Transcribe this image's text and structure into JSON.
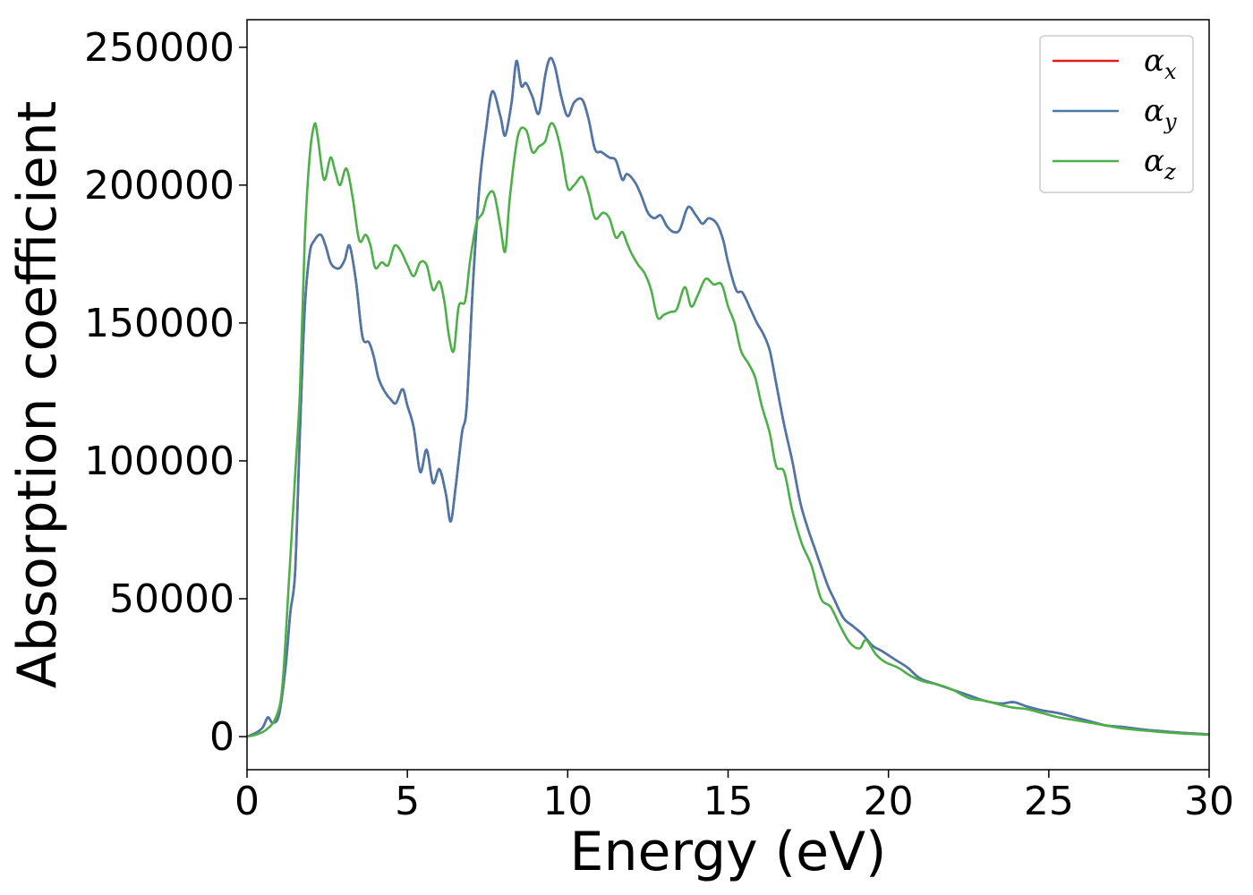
{
  "chart_data": {
    "type": "line",
    "title": "",
    "xlabel": "Energy (eV)",
    "ylabel": "Absorption coefficient",
    "xlim": [
      0,
      30
    ],
    "ylim": [
      -12000,
      260000
    ],
    "xticks": [
      0,
      5,
      10,
      15,
      20,
      25,
      30
    ],
    "yticks": [
      0,
      50000,
      100000,
      150000,
      200000,
      250000
    ],
    "grid": false,
    "legend": "top-right",
    "series": [
      {
        "name": "α",
        "subscript": "x",
        "color": "#e41a1c",
        "x": [
          0,
          0.3,
          0.5,
          0.65,
          0.8,
          1.0,
          1.2,
          1.35,
          1.5,
          1.65,
          1.8,
          1.95,
          2.1,
          2.3,
          2.45,
          2.6,
          2.75,
          2.9,
          3.05,
          3.2,
          3.4,
          3.6,
          3.8,
          3.95,
          4.1,
          4.3,
          4.5,
          4.65,
          4.85,
          5.0,
          5.2,
          5.4,
          5.6,
          5.8,
          6.0,
          6.2,
          6.35,
          6.5,
          6.7,
          6.85,
          7.05,
          7.25,
          7.45,
          7.65,
          7.9,
          8.05,
          8.25,
          8.4,
          8.55,
          8.7,
          8.9,
          9.1,
          9.3,
          9.45,
          9.6,
          9.8,
          10.0,
          10.2,
          10.45,
          10.65,
          10.85,
          11.05,
          11.3,
          11.5,
          11.7,
          11.85,
          12.1,
          12.3,
          12.5,
          12.7,
          12.9,
          13.1,
          13.3,
          13.5,
          13.75,
          14.0,
          14.2,
          14.4,
          14.65,
          14.85,
          15.0,
          15.25,
          15.45,
          15.7,
          15.9,
          16.1,
          16.3,
          16.5,
          16.75,
          17.0,
          17.25,
          17.5,
          17.8,
          18.1,
          18.3,
          18.6,
          18.9,
          19.2,
          19.5,
          19.8,
          20.2,
          20.6,
          21.0,
          21.5,
          22.0,
          22.5,
          23.0,
          23.5,
          23.9,
          24.3,
          24.8,
          25.3,
          25.8,
          26.3,
          26.8,
          27.3,
          28.0,
          28.7,
          29.4,
          30.0
        ],
        "y": [
          0,
          1500,
          3500,
          7000,
          5000,
          8000,
          25000,
          45000,
          60000,
          110000,
          155000,
          175000,
          180000,
          182000,
          178000,
          172000,
          170000,
          170000,
          173000,
          178000,
          165000,
          145000,
          143000,
          138000,
          130000,
          125000,
          122000,
          121000,
          126000,
          120000,
          112000,
          96000,
          104000,
          92000,
          97000,
          88000,
          78000,
          90000,
          110000,
          120000,
          165000,
          200000,
          220000,
          234000,
          225000,
          218000,
          230000,
          245000,
          236000,
          237000,
          232000,
          226000,
          240000,
          246000,
          243000,
          232000,
          225000,
          230000,
          231000,
          224000,
          213000,
          212000,
          210000,
          209000,
          202000,
          204000,
          201000,
          196000,
          190000,
          188000,
          189000,
          185000,
          183000,
          184000,
          192000,
          189000,
          186000,
          188000,
          186000,
          180000,
          172000,
          162000,
          161000,
          155000,
          150000,
          146000,
          140000,
          128000,
          113000,
          100000,
          85000,
          75000,
          65000,
          55000,
          50000,
          43000,
          40000,
          37000,
          33000,
          31000,
          28000,
          25000,
          21000,
          19000,
          17000,
          15000,
          13000,
          12000,
          12500,
          11000,
          9500,
          8500,
          7000,
          5500,
          4000,
          3500,
          2500,
          1800,
          1200,
          800
        ]
      },
      {
        "name": "α",
        "subscript": "y",
        "color": "#4a78a8",
        "x": [
          0,
          0.3,
          0.5,
          0.65,
          0.8,
          1.0,
          1.2,
          1.35,
          1.5,
          1.65,
          1.8,
          1.95,
          2.1,
          2.3,
          2.45,
          2.6,
          2.75,
          2.9,
          3.05,
          3.2,
          3.4,
          3.6,
          3.8,
          3.95,
          4.1,
          4.3,
          4.5,
          4.65,
          4.85,
          5.0,
          5.2,
          5.4,
          5.6,
          5.8,
          6.0,
          6.2,
          6.35,
          6.5,
          6.7,
          6.85,
          7.05,
          7.25,
          7.45,
          7.65,
          7.9,
          8.05,
          8.25,
          8.4,
          8.55,
          8.7,
          8.9,
          9.1,
          9.3,
          9.45,
          9.6,
          9.8,
          10.0,
          10.2,
          10.45,
          10.65,
          10.85,
          11.05,
          11.3,
          11.5,
          11.7,
          11.85,
          12.1,
          12.3,
          12.5,
          12.7,
          12.9,
          13.1,
          13.3,
          13.5,
          13.75,
          14.0,
          14.2,
          14.4,
          14.65,
          14.85,
          15.0,
          15.25,
          15.45,
          15.7,
          15.9,
          16.1,
          16.3,
          16.5,
          16.75,
          17.0,
          17.25,
          17.5,
          17.8,
          18.1,
          18.3,
          18.6,
          18.9,
          19.2,
          19.5,
          19.8,
          20.2,
          20.6,
          21.0,
          21.5,
          22.0,
          22.5,
          23.0,
          23.5,
          23.9,
          24.3,
          24.8,
          25.3,
          25.8,
          26.3,
          26.8,
          27.3,
          28.0,
          28.7,
          29.4,
          30.0
        ],
        "y": [
          0,
          1500,
          3500,
          7000,
          5000,
          8000,
          25000,
          45000,
          60000,
          110000,
          155000,
          175000,
          180000,
          182000,
          178000,
          172000,
          170000,
          170000,
          173000,
          178000,
          165000,
          145000,
          143000,
          138000,
          130000,
          125000,
          122000,
          121000,
          126000,
          120000,
          112000,
          96000,
          104000,
          92000,
          97000,
          88000,
          78000,
          90000,
          110000,
          120000,
          165000,
          200000,
          220000,
          234000,
          225000,
          218000,
          230000,
          245000,
          236000,
          237000,
          232000,
          226000,
          240000,
          246000,
          243000,
          232000,
          225000,
          230000,
          231000,
          224000,
          213000,
          212000,
          210000,
          209000,
          202000,
          204000,
          201000,
          196000,
          190000,
          188000,
          189000,
          185000,
          183000,
          184000,
          192000,
          189000,
          186000,
          188000,
          186000,
          180000,
          172000,
          162000,
          161000,
          155000,
          150000,
          146000,
          140000,
          128000,
          113000,
          100000,
          85000,
          75000,
          65000,
          55000,
          50000,
          43000,
          40000,
          37000,
          33000,
          31000,
          28000,
          25000,
          21000,
          19000,
          17000,
          15000,
          13000,
          12000,
          12500,
          11000,
          9500,
          8500,
          7000,
          5500,
          4000,
          3500,
          2500,
          1800,
          1200,
          800
        ]
      },
      {
        "name": "α",
        "subscript": "z",
        "color": "#4daf4a",
        "x": [
          0,
          0.3,
          0.6,
          0.9,
          1.1,
          1.3,
          1.5,
          1.65,
          1.8,
          1.95,
          2.1,
          2.2,
          2.4,
          2.6,
          2.75,
          2.9,
          3.1,
          3.3,
          3.5,
          3.7,
          3.85,
          4.0,
          4.2,
          4.4,
          4.6,
          4.8,
          5.0,
          5.2,
          5.4,
          5.6,
          5.8,
          6.0,
          6.15,
          6.3,
          6.45,
          6.6,
          6.8,
          6.95,
          7.15,
          7.35,
          7.5,
          7.7,
          7.9,
          8.05,
          8.2,
          8.45,
          8.7,
          8.9,
          9.1,
          9.3,
          9.45,
          9.6,
          9.8,
          10.0,
          10.2,
          10.45,
          10.65,
          10.85,
          11.1,
          11.3,
          11.5,
          11.7,
          11.85,
          12.0,
          12.2,
          12.4,
          12.6,
          12.8,
          13.0,
          13.2,
          13.4,
          13.65,
          13.85,
          14.05,
          14.3,
          14.55,
          14.8,
          15.0,
          15.2,
          15.4,
          15.65,
          15.85,
          16.05,
          16.3,
          16.5,
          16.75,
          17.0,
          17.3,
          17.6,
          17.9,
          18.2,
          18.5,
          18.8,
          19.1,
          19.3,
          19.6,
          19.9,
          20.3,
          20.7,
          21.1,
          21.5,
          22.0,
          22.5,
          23.0,
          23.5,
          23.9,
          24.3,
          24.8,
          25.3,
          25.8,
          26.3,
          26.8,
          27.3,
          28.0,
          28.7,
          29.4,
          30.0
        ],
        "y": [
          0,
          800,
          2500,
          7000,
          18000,
          55000,
          95000,
          125000,
          180000,
          210000,
          222000,
          218000,
          202000,
          210000,
          205000,
          200000,
          206000,
          195000,
          180000,
          182000,
          178000,
          170000,
          172000,
          171000,
          178000,
          176000,
          171000,
          167000,
          172000,
          171000,
          162000,
          165000,
          158000,
          145000,
          140000,
          156000,
          158000,
          172000,
          186000,
          190000,
          196000,
          197000,
          185000,
          176000,
          196000,
          218000,
          220000,
          212000,
          214000,
          216000,
          222000,
          221000,
          212000,
          199000,
          200000,
          203000,
          197000,
          188000,
          190000,
          188000,
          181000,
          183000,
          179000,
          175000,
          171000,
          168000,
          162000,
          152000,
          153000,
          154000,
          155000,
          163000,
          156000,
          160000,
          166000,
          164000,
          164000,
          156000,
          150000,
          140000,
          135000,
          130000,
          120000,
          110000,
          98000,
          96000,
          82000,
          70000,
          62000,
          50000,
          47000,
          40000,
          34000,
          32000,
          35000,
          30000,
          27000,
          25000,
          22000,
          20000,
          19000,
          17000,
          14000,
          13000,
          11500,
          10500,
          10000,
          8500,
          7000,
          6000,
          5000,
          4000,
          3000,
          2200,
          1500,
          1000,
          700
        ]
      }
    ]
  }
}
